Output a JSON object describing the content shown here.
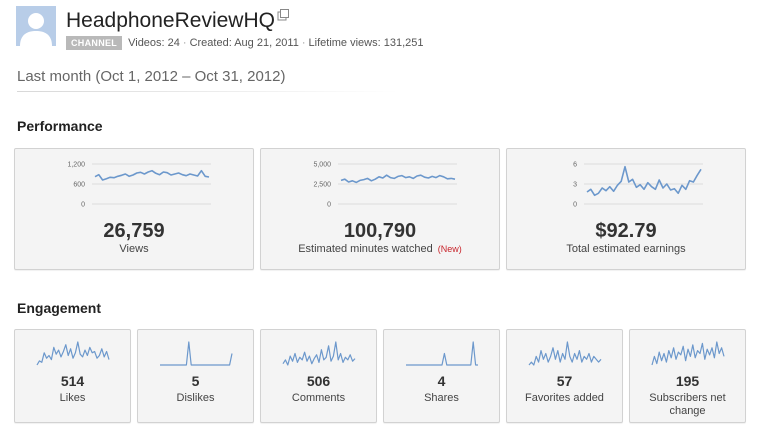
{
  "channel": {
    "name": "HeadphoneReviewHQ",
    "badge": "CHANNEL",
    "videos": "Videos: 24",
    "created": "Created: Aug 21, 2011",
    "lifetime_views": "Lifetime views: 131,251"
  },
  "period_label": "Last month (Oct 1, 2012 – Oct 31, 2012)",
  "performance": {
    "title": "Performance",
    "cards": [
      {
        "value": "26,759",
        "label": "Views",
        "new_tag": "",
        "chart_data": {
          "type": "line",
          "yticks": [
            "1,200",
            "600",
            "0"
          ],
          "ylim": [
            0,
            1200
          ],
          "values": [
            820,
            880,
            720,
            760,
            800,
            790,
            830,
            860,
            900,
            830,
            870,
            930,
            950,
            900,
            960,
            1000,
            920,
            880,
            960,
            940,
            870,
            900,
            930,
            880,
            850,
            900,
            870,
            840,
            1000,
            830,
            810
          ]
        }
      },
      {
        "value": "100,790",
        "label": "Estimated minutes watched",
        "new_tag": "(New)",
        "chart_data": {
          "type": "line",
          "yticks": [
            "5,000",
            "2,500",
            "0"
          ],
          "ylim": [
            0,
            5000
          ],
          "values": [
            2950,
            3100,
            2750,
            2900,
            2700,
            2950,
            3050,
            3200,
            2900,
            3100,
            3400,
            3250,
            3600,
            3300,
            3200,
            3450,
            3550,
            3300,
            3400,
            3200,
            3500,
            3600,
            3350,
            3250,
            3450,
            3300,
            3550,
            3400,
            3150,
            3200,
            3100
          ]
        }
      },
      {
        "value": "$92.79",
        "label": "Total estimated earnings",
        "new_tag": "",
        "chart_data": {
          "type": "line",
          "yticks": [
            "6",
            "3",
            "0"
          ],
          "ylim": [
            0,
            6
          ],
          "values": [
            1.8,
            2.2,
            1.3,
            1.6,
            2.4,
            2.0,
            2.6,
            1.9,
            2.8,
            3.4,
            5.6,
            3.3,
            3.7,
            2.5,
            2.9,
            2.2,
            3.2,
            2.6,
            2.2,
            3.6,
            2.4,
            3.0,
            2.1,
            2.3,
            1.6,
            2.8,
            2.2,
            3.5,
            3.3,
            4.3,
            5.2
          ]
        }
      }
    ]
  },
  "engagement": {
    "title": "Engagement",
    "cards": [
      {
        "value": "514",
        "label": "Likes",
        "chart_data": {
          "type": "line",
          "values": [
            3,
            6,
            5,
            12,
            8,
            10,
            7,
            16,
            11,
            14,
            9,
            13,
            18,
            10,
            15,
            8,
            12,
            20,
            11,
            9,
            14,
            10,
            16,
            12,
            13,
            8,
            10,
            15,
            9,
            13,
            7
          ]
        }
      },
      {
        "value": "5",
        "label": "Dislikes",
        "chart_data": {
          "type": "line",
          "values": [
            0,
            0,
            0,
            0,
            0,
            0,
            0,
            0,
            0,
            0,
            0,
            0,
            2,
            0,
            0,
            0,
            0,
            0,
            0,
            0,
            0,
            0,
            0,
            0,
            0,
            0,
            0,
            0,
            0,
            0,
            1
          ]
        }
      },
      {
        "value": "506",
        "label": "Comments",
        "chart_data": {
          "type": "line",
          "values": [
            3,
            6,
            2,
            9,
            5,
            11,
            4,
            8,
            6,
            12,
            5,
            9,
            3,
            7,
            10,
            4,
            14,
            6,
            8,
            17,
            5,
            9,
            20,
            6,
            11,
            4,
            8,
            6,
            10,
            5,
            7
          ]
        }
      },
      {
        "value": "4",
        "label": "Shares",
        "chart_data": {
          "type": "line",
          "values": [
            0,
            0,
            0,
            0,
            0,
            0,
            0,
            0,
            0,
            0,
            0,
            0,
            0,
            0,
            0,
            0,
            1,
            0,
            0,
            0,
            0,
            0,
            0,
            0,
            0,
            0,
            0,
            0,
            2,
            0,
            0
          ]
        }
      },
      {
        "value": "57",
        "label": "Favorites added",
        "chart_data": {
          "type": "line",
          "values": [
            1,
            2,
            1,
            4,
            2,
            6,
            3,
            5,
            2,
            4,
            7,
            3,
            6,
            2,
            5,
            3,
            9,
            4,
            2,
            5,
            3,
            6,
            2,
            4,
            3,
            5,
            2,
            4,
            3,
            2,
            3
          ]
        }
      },
      {
        "value": "195",
        "label": "Subscribers net change",
        "chart_data": {
          "type": "line",
          "values": [
            4,
            10,
            5,
            13,
            7,
            12,
            6,
            14,
            9,
            16,
            8,
            13,
            11,
            17,
            7,
            15,
            10,
            18,
            9,
            14,
            12,
            19,
            8,
            15,
            11,
            16,
            9,
            20,
            12,
            16,
            10
          ]
        }
      }
    ]
  },
  "colors": {
    "line": "#6c98cc",
    "card_bg": "#f4f4f4",
    "card_border": "#d2d2d2",
    "new_tag": "#c8242b",
    "badge": "#b9b9b9"
  }
}
